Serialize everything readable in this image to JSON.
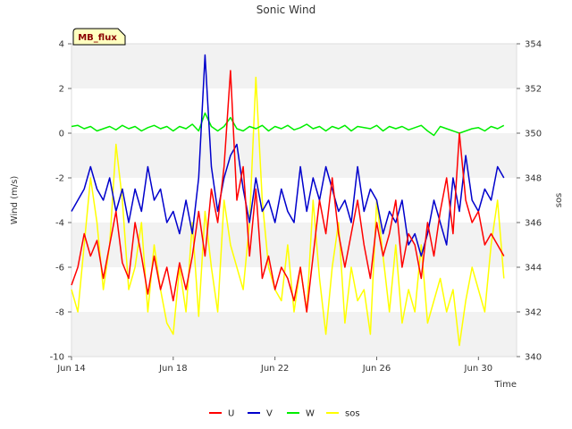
{
  "chart_data": {
    "type": "line",
    "title": "Sonic Wind",
    "badge": "MB_flux",
    "xlabel": "Time",
    "ylabel": "Wind (m/s)",
    "y2label": "sos",
    "xlim": [
      0,
      17.5
    ],
    "ylim": [
      -10,
      4
    ],
    "y2lim": [
      340,
      354
    ],
    "x_ticks": [
      {
        "x": 0,
        "label": "Jun 14"
      },
      {
        "x": 4,
        "label": "Jun 18"
      },
      {
        "x": 8,
        "label": "Jun 22"
      },
      {
        "x": 12,
        "label": "Jun 26"
      },
      {
        "x": 16,
        "label": "Jun 30"
      }
    ],
    "y_ticks": [
      {
        "v": -10,
        "label": "-10"
      },
      {
        "v": -8,
        "label": "-8"
      },
      {
        "v": -6,
        "label": "-6"
      },
      {
        "v": -4,
        "label": "-4"
      },
      {
        "v": -2,
        "label": "-2"
      },
      {
        "v": 0,
        "label": "0"
      },
      {
        "v": 2,
        "label": "2"
      },
      {
        "v": 4,
        "label": "4"
      }
    ],
    "y2_ticks": [
      {
        "v": 340,
        "label": "340"
      },
      {
        "v": 342,
        "label": "342"
      },
      {
        "v": 344,
        "label": "344"
      },
      {
        "v": 346,
        "label": "346"
      },
      {
        "v": 348,
        "label": "348"
      },
      {
        "v": 350,
        "label": "350"
      },
      {
        "v": 352,
        "label": "352"
      },
      {
        "v": 354,
        "label": "354"
      }
    ],
    "bands": [
      [
        -10,
        -8
      ],
      [
        -6,
        -4
      ],
      [
        -2,
        0
      ],
      [
        2,
        4
      ]
    ],
    "legend": [
      {
        "name": "U",
        "color": "#ff0000"
      },
      {
        "name": "V",
        "color": "#0000cc"
      },
      {
        "name": "W",
        "color": "#00ee00"
      },
      {
        "name": "sos",
        "color": "#ffff00"
      }
    ],
    "series": [
      {
        "name": "U",
        "axis": "left",
        "color": "#ff0000",
        "x": [
          0.0,
          0.25,
          0.5,
          0.75,
          1.0,
          1.25,
          1.5,
          1.75,
          2.0,
          2.25,
          2.5,
          2.75,
          3.0,
          3.25,
          3.5,
          3.75,
          4.0,
          4.25,
          4.5,
          4.75,
          5.0,
          5.25,
          5.5,
          5.75,
          6.0,
          6.25,
          6.5,
          6.75,
          7.0,
          7.25,
          7.5,
          7.75,
          8.0,
          8.25,
          8.5,
          8.75,
          9.0,
          9.25,
          9.5,
          9.75,
          10.0,
          10.25,
          10.5,
          10.75,
          11.0,
          11.25,
          11.5,
          11.75,
          12.0,
          12.25,
          12.5,
          12.75,
          13.0,
          13.25,
          13.5,
          13.75,
          14.0,
          14.25,
          14.5,
          14.75,
          15.0,
          15.25,
          15.5,
          15.75,
          16.0,
          16.25,
          16.5,
          16.75,
          17.0
        ],
        "values": [
          -6.8,
          -6.0,
          -4.5,
          -5.5,
          -4.8,
          -6.5,
          -5.0,
          -3.5,
          -5.8,
          -6.5,
          -4.0,
          -5.5,
          -7.2,
          -5.5,
          -7.0,
          -6.0,
          -7.5,
          -5.8,
          -7.0,
          -5.5,
          -3.5,
          -5.5,
          -2.5,
          -4.0,
          -1.5,
          2.8,
          -3.0,
          -1.5,
          -5.5,
          -2.5,
          -6.5,
          -5.5,
          -7.0,
          -6.0,
          -6.5,
          -7.5,
          -6.0,
          -8.0,
          -5.5,
          -3.0,
          -4.5,
          -2.0,
          -4.5,
          -6.0,
          -4.5,
          -3.0,
          -5.0,
          -6.5,
          -4.0,
          -5.5,
          -4.5,
          -3.0,
          -6.0,
          -4.5,
          -5.0,
          -6.5,
          -4.0,
          -5.5,
          -3.5,
          -2.0,
          -4.5,
          0.0,
          -3.0,
          -4.0,
          -3.5,
          -5.0,
          -4.5,
          -5.0,
          -5.5
        ]
      },
      {
        "name": "V",
        "axis": "left",
        "color": "#0000cc",
        "x": [
          0.0,
          0.25,
          0.5,
          0.75,
          1.0,
          1.25,
          1.5,
          1.75,
          2.0,
          2.25,
          2.5,
          2.75,
          3.0,
          3.25,
          3.5,
          3.75,
          4.0,
          4.25,
          4.5,
          4.75,
          5.0,
          5.25,
          5.5,
          5.75,
          6.0,
          6.25,
          6.5,
          6.75,
          7.0,
          7.25,
          7.5,
          7.75,
          8.0,
          8.25,
          8.5,
          8.75,
          9.0,
          9.25,
          9.5,
          9.75,
          10.0,
          10.25,
          10.5,
          10.75,
          11.0,
          11.25,
          11.5,
          11.75,
          12.0,
          12.25,
          12.5,
          12.75,
          13.0,
          13.25,
          13.5,
          13.75,
          14.0,
          14.25,
          14.5,
          14.75,
          15.0,
          15.25,
          15.5,
          15.75,
          16.0,
          16.25,
          16.5,
          16.75,
          17.0
        ],
        "values": [
          -3.5,
          -3.0,
          -2.5,
          -1.5,
          -2.5,
          -3.0,
          -2.0,
          -3.5,
          -2.5,
          -4.0,
          -2.5,
          -3.5,
          -1.5,
          -3.0,
          -2.5,
          -4.0,
          -3.5,
          -4.5,
          -3.0,
          -4.5,
          -2.0,
          3.5,
          -1.5,
          -3.5,
          -2.0,
          -1.0,
          -0.5,
          -2.5,
          -4.0,
          -2.0,
          -3.5,
          -3.0,
          -4.0,
          -2.5,
          -3.5,
          -4.0,
          -1.5,
          -3.5,
          -2.0,
          -3.0,
          -1.5,
          -2.5,
          -3.5,
          -3.0,
          -4.0,
          -1.5,
          -3.5,
          -2.5,
          -3.0,
          -4.5,
          -3.5,
          -4.0,
          -3.0,
          -5.0,
          -4.5,
          -5.5,
          -4.5,
          -3.0,
          -4.0,
          -5.0,
          -2.0,
          -3.5,
          -1.0,
          -3.0,
          -3.5,
          -2.5,
          -3.0,
          -1.5,
          -2.0
        ]
      },
      {
        "name": "W",
        "axis": "left",
        "color": "#00ee00",
        "x": [
          0.0,
          0.25,
          0.5,
          0.75,
          1.0,
          1.25,
          1.5,
          1.75,
          2.0,
          2.25,
          2.5,
          2.75,
          3.0,
          3.25,
          3.5,
          3.75,
          4.0,
          4.25,
          4.5,
          4.75,
          5.0,
          5.25,
          5.5,
          5.75,
          6.0,
          6.25,
          6.5,
          6.75,
          7.0,
          7.25,
          7.5,
          7.75,
          8.0,
          8.25,
          8.5,
          8.75,
          9.0,
          9.25,
          9.5,
          9.75,
          10.0,
          10.25,
          10.5,
          10.75,
          11.0,
          11.25,
          11.5,
          11.75,
          12.0,
          12.25,
          12.5,
          12.75,
          13.0,
          13.25,
          13.5,
          13.75,
          14.0,
          14.25,
          14.5,
          14.75,
          15.0,
          15.25,
          15.5,
          15.75,
          16.0,
          16.25,
          16.5,
          16.75,
          17.0
        ],
        "values": [
          0.3,
          0.35,
          0.2,
          0.3,
          0.1,
          0.2,
          0.3,
          0.15,
          0.35,
          0.2,
          0.3,
          0.1,
          0.25,
          0.35,
          0.2,
          0.3,
          0.1,
          0.3,
          0.2,
          0.4,
          0.1,
          0.9,
          0.3,
          0.1,
          0.3,
          0.7,
          0.2,
          0.1,
          0.3,
          0.2,
          0.35,
          0.1,
          0.3,
          0.2,
          0.35,
          0.15,
          0.25,
          0.4,
          0.2,
          0.3,
          0.1,
          0.3,
          0.2,
          0.35,
          0.1,
          0.3,
          0.25,
          0.2,
          0.35,
          0.1,
          0.3,
          0.2,
          0.3,
          0.15,
          0.25,
          0.35,
          0.1,
          -0.1,
          0.3,
          0.2,
          0.1,
          0.0,
          0.1,
          0.2,
          0.25,
          0.1,
          0.3,
          0.2,
          0.35
        ]
      },
      {
        "name": "sos",
        "axis": "right",
        "color": "#ffff00",
        "x": [
          0.0,
          0.25,
          0.5,
          0.75,
          1.0,
          1.25,
          1.5,
          1.75,
          2.0,
          2.25,
          2.5,
          2.75,
          3.0,
          3.25,
          3.5,
          3.75,
          4.0,
          4.25,
          4.5,
          4.75,
          5.0,
          5.25,
          5.5,
          5.75,
          6.0,
          6.25,
          6.5,
          6.75,
          7.0,
          7.25,
          7.5,
          7.75,
          8.0,
          8.25,
          8.5,
          8.75,
          9.0,
          9.25,
          9.5,
          9.75,
          10.0,
          10.25,
          10.5,
          10.75,
          11.0,
          11.25,
          11.5,
          11.75,
          12.0,
          12.25,
          12.5,
          12.75,
          13.0,
          13.25,
          13.5,
          13.75,
          14.0,
          14.25,
          14.5,
          14.75,
          15.0,
          15.25,
          15.5,
          15.75,
          16.0,
          16.25,
          16.5,
          16.75,
          17.0
        ],
        "values": [
          343.0,
          342.0,
          345.0,
          348.0,
          346.0,
          343.0,
          345.0,
          349.5,
          347.0,
          343.0,
          344.0,
          346.0,
          342.0,
          345.0,
          343.0,
          341.5,
          341.0,
          344.0,
          342.0,
          346.0,
          341.8,
          346.5,
          344.0,
          342.0,
          347.0,
          345.0,
          344.0,
          343.0,
          346.0,
          352.5,
          347.0,
          344.0,
          343.0,
          342.5,
          345.0,
          342.0,
          344.0,
          342.0,
          347.0,
          343.5,
          341.0,
          344.0,
          346.0,
          341.5,
          344.0,
          342.5,
          343.0,
          341.0,
          347.0,
          344.5,
          342.0,
          345.0,
          341.5,
          343.0,
          342.0,
          345.0,
          341.5,
          342.5,
          343.5,
          342.0,
          343.0,
          340.5,
          342.5,
          344.0,
          343.0,
          342.0,
          345.0,
          347.0,
          343.5
        ]
      }
    ]
  }
}
